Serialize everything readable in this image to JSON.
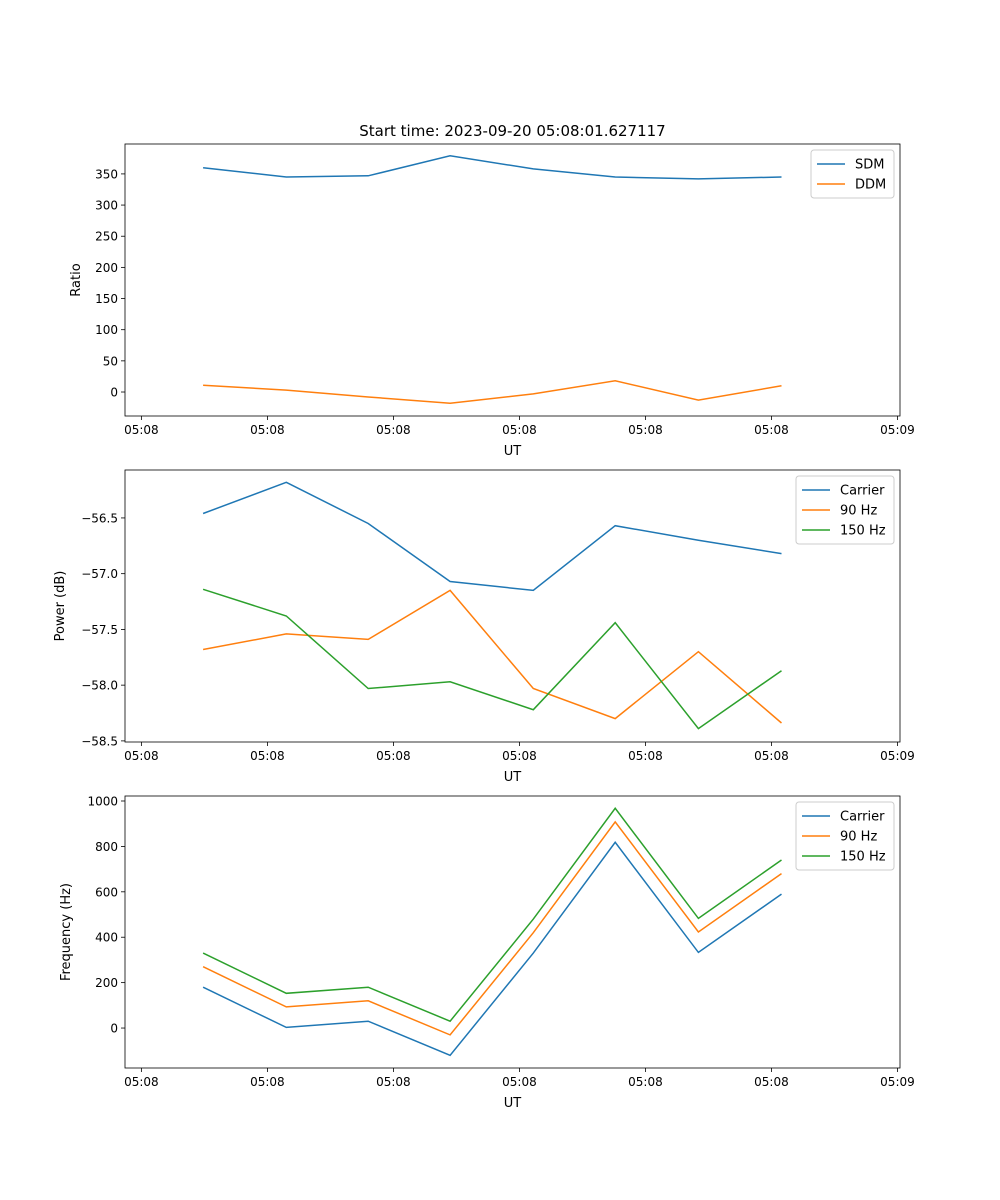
{
  "chart_data": [
    {
      "type": "line",
      "title": "Start time: 2023-09-20 05:08:01.627117",
      "xlabel": "UT",
      "ylabel": "Ratio",
      "x_unit": "seconds after 05:08:00",
      "x": [
        4.9,
        11.5,
        18.0,
        24.5,
        31.1,
        37.6,
        44.2,
        50.8
      ],
      "xlim": [
        -1.3,
        60.2
      ],
      "xticks": [
        0,
        10,
        20,
        30,
        40,
        50,
        60
      ],
      "xtick_labels": [
        "05:08",
        "05:08",
        "05:08",
        "05:08",
        "05:08",
        "05:08",
        "05:09"
      ],
      "ylim": [
        -38.5,
        398
      ],
      "yticks": [
        0,
        50,
        100,
        150,
        200,
        250,
        300,
        350
      ],
      "ytick_labels": [
        "0",
        "50",
        "100",
        "150",
        "200",
        "250",
        "300",
        "350"
      ],
      "legend": "top-right",
      "series": [
        {
          "name": "SDM",
          "color": "#1f77b4",
          "values": [
            360,
            345,
            347,
            379,
            358,
            345,
            342,
            345
          ]
        },
        {
          "name": "DDM",
          "color": "#ff7f0e",
          "values": [
            11,
            3,
            -8,
            -18,
            -3,
            18,
            -13,
            10
          ]
        }
      ]
    },
    {
      "type": "line",
      "title": "",
      "xlabel": "UT",
      "ylabel": "Power (dB)",
      "x": [
        4.9,
        11.5,
        18.0,
        24.5,
        31.1,
        37.6,
        44.2,
        50.8
      ],
      "xlim": [
        -1.3,
        60.2
      ],
      "xticks": [
        0,
        10,
        20,
        30,
        40,
        50,
        60
      ],
      "xtick_labels": [
        "05:08",
        "05:08",
        "05:08",
        "05:08",
        "05:08",
        "05:08",
        "05:09"
      ],
      "ylim": [
        -58.51,
        -56.07
      ],
      "yticks": [
        -58.5,
        -58.0,
        -57.5,
        -57.0,
        -56.5
      ],
      "ytick_labels": [
        "−58.5",
        "−58.0",
        "−57.5",
        "−57.0",
        "−56.5"
      ],
      "legend": "top-right",
      "series": [
        {
          "name": "Carrier",
          "color": "#1f77b4",
          "values": [
            -56.46,
            -56.18,
            -56.55,
            -57.07,
            -57.15,
            -56.57,
            -56.7,
            -56.82
          ]
        },
        {
          "name": "90 Hz",
          "color": "#ff7f0e",
          "values": [
            -57.68,
            -57.54,
            -57.59,
            -57.15,
            -58.03,
            -58.3,
            -57.7,
            -58.34
          ]
        },
        {
          "name": "150 Hz",
          "color": "#2ca02c",
          "values": [
            -57.14,
            -57.38,
            -58.03,
            -57.97,
            -58.22,
            -57.44,
            -58.39,
            -57.87
          ]
        }
      ]
    },
    {
      "type": "line",
      "title": "",
      "xlabel": "UT",
      "ylabel": "Frequency (Hz)",
      "x": [
        4.9,
        11.5,
        18.0,
        24.5,
        31.1,
        37.6,
        44.2,
        50.8
      ],
      "xlim": [
        -1.3,
        60.2
      ],
      "xticks": [
        0,
        10,
        20,
        30,
        40,
        50,
        60
      ],
      "xtick_labels": [
        "05:08",
        "05:08",
        "05:08",
        "05:08",
        "05:08",
        "05:08",
        "05:09"
      ],
      "ylim": [
        -176,
        1022
      ],
      "yticks": [
        0,
        200,
        400,
        600,
        800,
        1000
      ],
      "ytick_labels": [
        "0",
        "200",
        "400",
        "600",
        "800",
        "1000"
      ],
      "legend": "top-right",
      "series": [
        {
          "name": "Carrier",
          "color": "#1f77b4",
          "values": [
            180,
            3,
            30,
            -120,
            330,
            818,
            333,
            590
          ]
        },
        {
          "name": "90 Hz",
          "color": "#ff7f0e",
          "values": [
            270,
            93,
            120,
            -30,
            420,
            908,
            423,
            680
          ]
        },
        {
          "name": "150 Hz",
          "color": "#2ca02c",
          "values": [
            330,
            153,
            180,
            30,
            480,
            968,
            483,
            740
          ]
        }
      ]
    }
  ]
}
